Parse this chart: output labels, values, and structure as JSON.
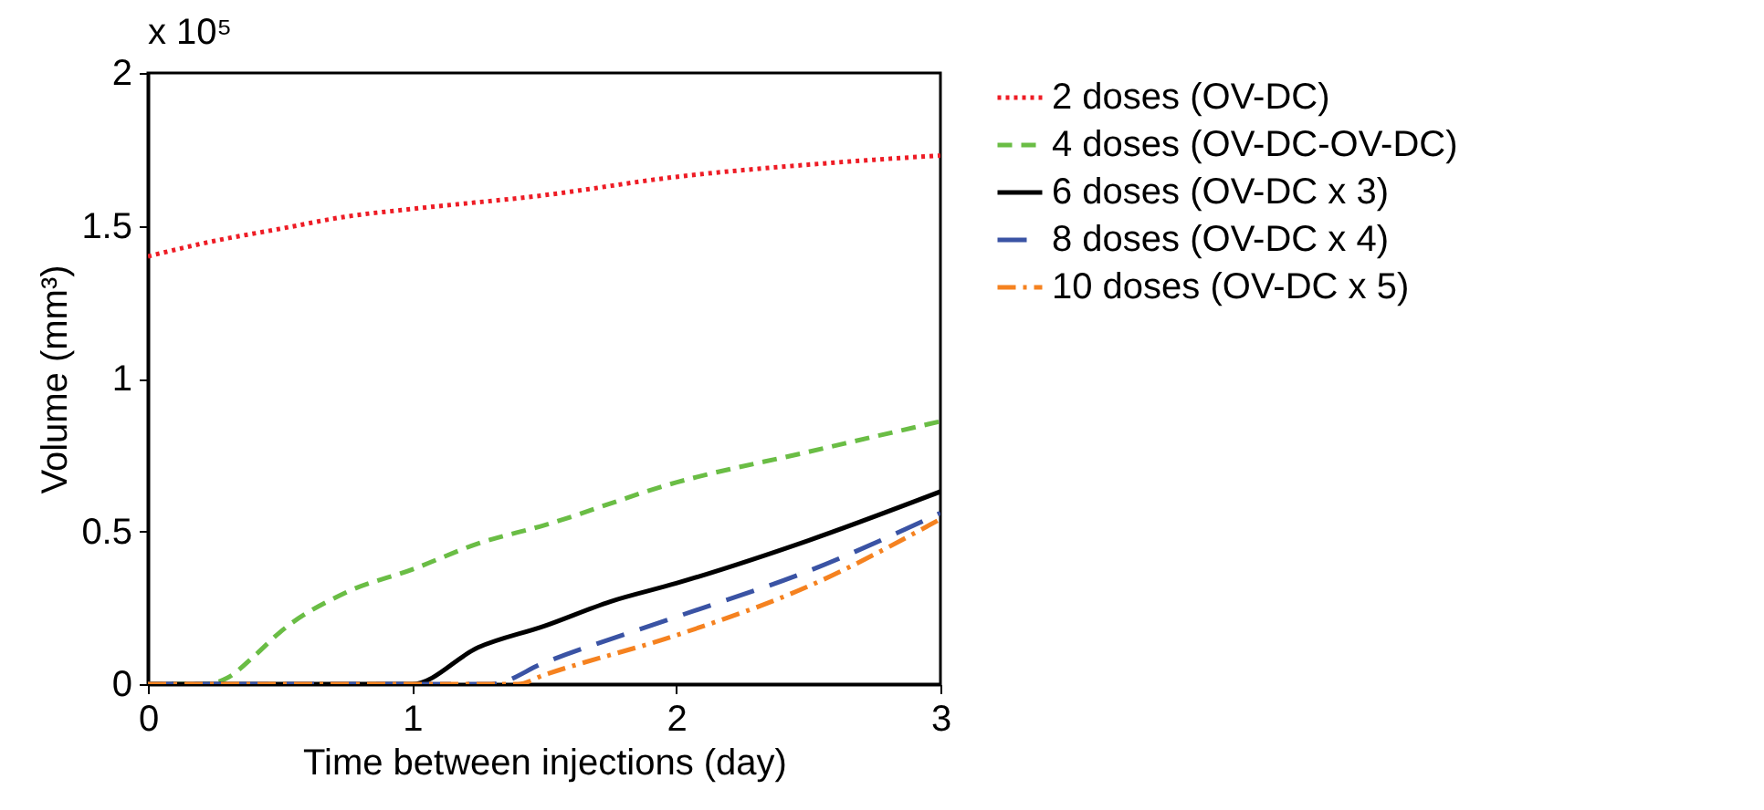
{
  "chart_data": {
    "type": "line",
    "xlabel": "Time between injections (day)",
    "ylabel": "Volume (mm³)",
    "annotations": [
      "x 10⁵"
    ],
    "xlim": [
      0,
      3
    ],
    "xticks": [
      0,
      1,
      2,
      3
    ],
    "ylim": [
      0,
      2
    ],
    "yticks": [
      0,
      0.5,
      1,
      1.5,
      2
    ],
    "legend": "right",
    "grid": false,
    "marker": "none",
    "series": [
      {
        "name": "2 doses (OV-DC)",
        "color": "#ee1c25",
        "line_style": "dotted",
        "x": [
          0,
          0.25,
          0.5,
          0.75,
          1,
          1.5,
          2,
          2.5,
          3
        ],
        "values": [
          1.4,
          1.45,
          1.49,
          1.53,
          1.555,
          1.6,
          1.66,
          1.7,
          1.73
        ]
      },
      {
        "name": "4 doses (OV-DC-OV-DC)",
        "color": "#6abd45",
        "line_style": "dashed",
        "x": [
          0,
          0.22,
          0.3,
          0.4,
          0.5,
          0.75,
          1,
          1.25,
          1.5,
          2,
          2.5,
          3
        ],
        "values": [
          0,
          0,
          0.02,
          0.09,
          0.17,
          0.3,
          0.375,
          0.46,
          0.52,
          0.66,
          0.76,
          0.86
        ]
      },
      {
        "name": "6 doses (OV-DC x 3)",
        "color": "#000000",
        "line_style": "solid",
        "x": [
          0,
          1,
          1.25,
          1.5,
          1.75,
          2,
          2.5,
          3
        ],
        "values": [
          0,
          0,
          0.12,
          0.19,
          0.27,
          0.33,
          0.47,
          0.63
        ]
      },
      {
        "name": "8 doses (OV-DC x 4)",
        "color": "#3a53a4",
        "line_style": "longdash",
        "x": [
          0,
          1.3,
          1.5,
          2,
          2.5,
          3
        ],
        "values": [
          0,
          0,
          0.07,
          0.22,
          0.37,
          0.56
        ]
      },
      {
        "name": "10 doses (OV-DC x 5)",
        "color": "#f58220",
        "line_style": "dashdot",
        "x": [
          0,
          1.4,
          1.5,
          2,
          2.5,
          3
        ],
        "values": [
          0,
          0,
          0.03,
          0.16,
          0.32,
          0.54
        ]
      }
    ]
  }
}
